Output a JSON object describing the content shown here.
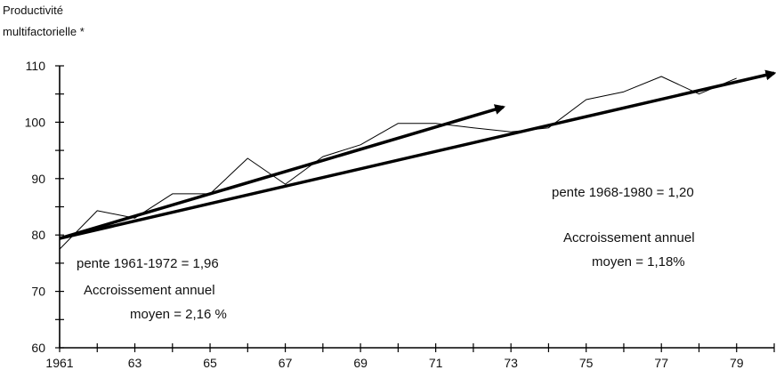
{
  "chart_data": {
    "type": "line",
    "ylabel_lines": [
      "Productivité",
      "multifactorielle *"
    ],
    "xlabel": "",
    "xlim": [
      1961,
      1980
    ],
    "ylim": [
      60,
      110
    ],
    "x_ticks": [
      1961,
      1962,
      1963,
      1964,
      1965,
      1966,
      1967,
      1968,
      1969,
      1970,
      1971,
      1972,
      1973,
      1974,
      1975,
      1976,
      1977,
      1978,
      1979,
      1980
    ],
    "x_tick_labels": [
      {
        "x": 1961,
        "label": "1961"
      },
      {
        "x": 1963,
        "label": "63"
      },
      {
        "x": 1965,
        "label": "65"
      },
      {
        "x": 1967,
        "label": "67"
      },
      {
        "x": 1969,
        "label": "69"
      },
      {
        "x": 1971,
        "label": "71"
      },
      {
        "x": 1973,
        "label": "73"
      },
      {
        "x": 1975,
        "label": "75"
      },
      {
        "x": 1977,
        "label": "77"
      },
      {
        "x": 1979,
        "label": "79"
      }
    ],
    "y_ticks": [
      60,
      65,
      70,
      75,
      80,
      85,
      90,
      95,
      100,
      105,
      110
    ],
    "y_tick_labels": [
      {
        "y": 60,
        "label": "60"
      },
      {
        "y": 70,
        "label": "70"
      },
      {
        "y": 80,
        "label": "80"
      },
      {
        "y": 90,
        "label": "90"
      },
      {
        "y": 100,
        "label": "100"
      },
      {
        "y": 110,
        "label": "110"
      }
    ],
    "series": [
      {
        "x": [
          1961,
          1962,
          1963,
          1964,
          1965,
          1966,
          1967,
          1968,
          1969,
          1970,
          1971,
          1972,
          1973,
          1974,
          1975,
          1976,
          1977,
          1978,
          1979
        ],
        "values": [
          77.5,
          84.3,
          83.0,
          87.3,
          87.3,
          93.6,
          89.0,
          93.9,
          96.0,
          99.8,
          99.8,
          99.0,
          98.3,
          99.0,
          104.0,
          105.4,
          108.1,
          105.0,
          107.8
        ]
      }
    ],
    "trend_lines": [
      {
        "x": [
          1961,
          1972.8
        ],
        "y": [
          79.4,
          102.7
        ],
        "label_lines": [
          "pente 1961-1972 = 1,96",
          "Accroissement annuel",
          "moyen = 2,16 %"
        ]
      },
      {
        "x": [
          1961,
          1980
        ],
        "y": [
          79.4,
          108.7
        ],
        "label_lines": [
          "pente 1968-1980 = 1,20",
          "Accroissement annuel",
          "moyen = 1,18%"
        ]
      }
    ],
    "grid": false
  }
}
